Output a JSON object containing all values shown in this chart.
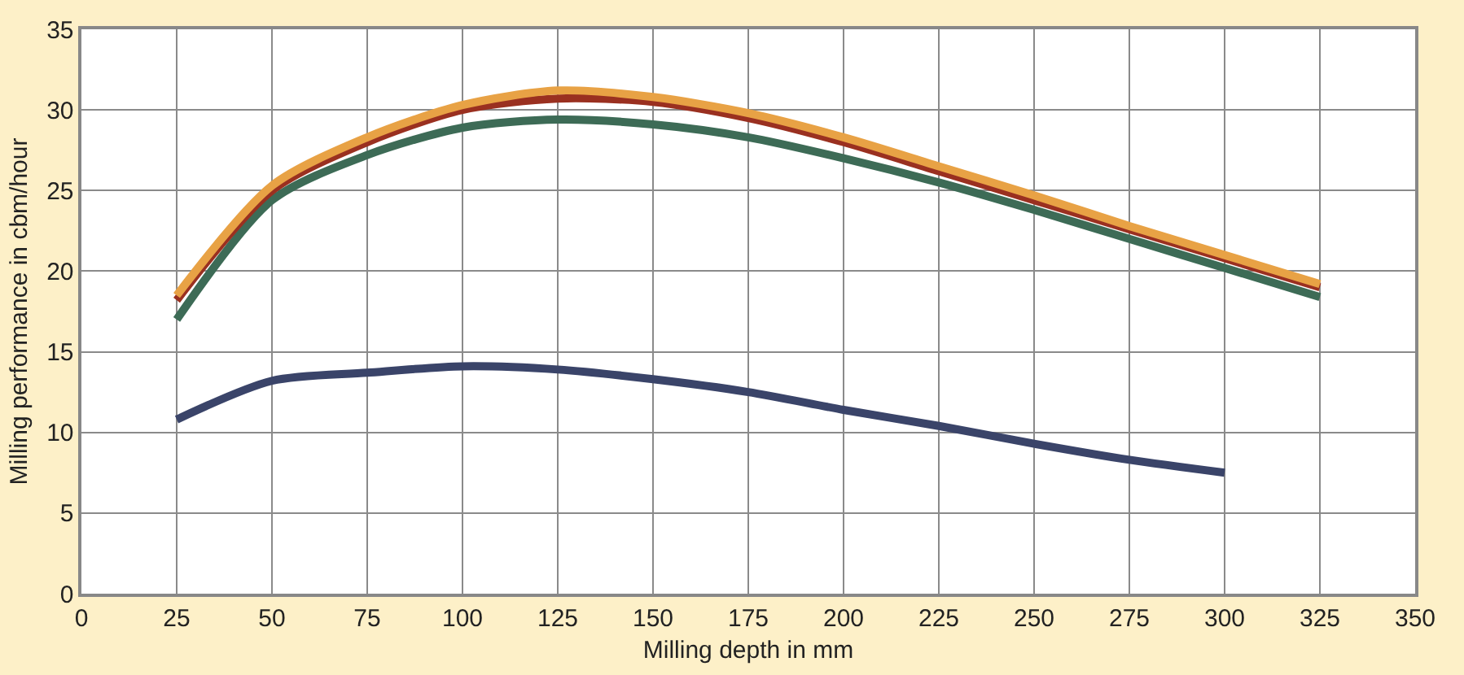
{
  "chart_data": {
    "type": "line",
    "xlabel": "Milling depth in mm",
    "ylabel": "Milling performance in cbm/hour",
    "x": [
      25,
      50,
      75,
      100,
      125,
      150,
      175,
      200,
      225,
      250,
      275,
      300,
      325
    ],
    "series": [
      {
        "color": "#3a4469",
        "values": [
          10.8,
          13.2,
          13.7,
          14.1,
          13.9,
          13.3,
          12.5,
          11.4,
          10.4,
          9.3,
          8.3,
          7.5,
          null
        ]
      },
      {
        "color": "#3d6b56",
        "values": [
          17.0,
          24.4,
          27.2,
          28.9,
          29.4,
          29.1,
          28.3,
          27.0,
          25.5,
          23.8,
          22.0,
          20.2,
          18.4
        ]
      },
      {
        "color": "#9a3020",
        "values": [
          18.2,
          25.0,
          28.0,
          30.0,
          30.7,
          30.5,
          29.5,
          28.0,
          26.2,
          24.4,
          22.6,
          20.8,
          19.0
        ]
      },
      {
        "color": "#e8a245",
        "values": [
          18.5,
          25.3,
          28.3,
          30.3,
          31.2,
          30.8,
          29.8,
          28.3,
          26.5,
          24.7,
          22.8,
          21.0,
          19.2
        ]
      }
    ],
    "xlim": [
      0,
      350
    ],
    "xticks": [
      0,
      25,
      50,
      75,
      100,
      125,
      150,
      175,
      200,
      225,
      250,
      275,
      300,
      325,
      350
    ],
    "ylim": [
      0,
      35
    ],
    "yticks": [
      0,
      5,
      10,
      15,
      20,
      25,
      30,
      35
    ],
    "grid": true,
    "marker": "none",
    "line_style": "solid"
  }
}
